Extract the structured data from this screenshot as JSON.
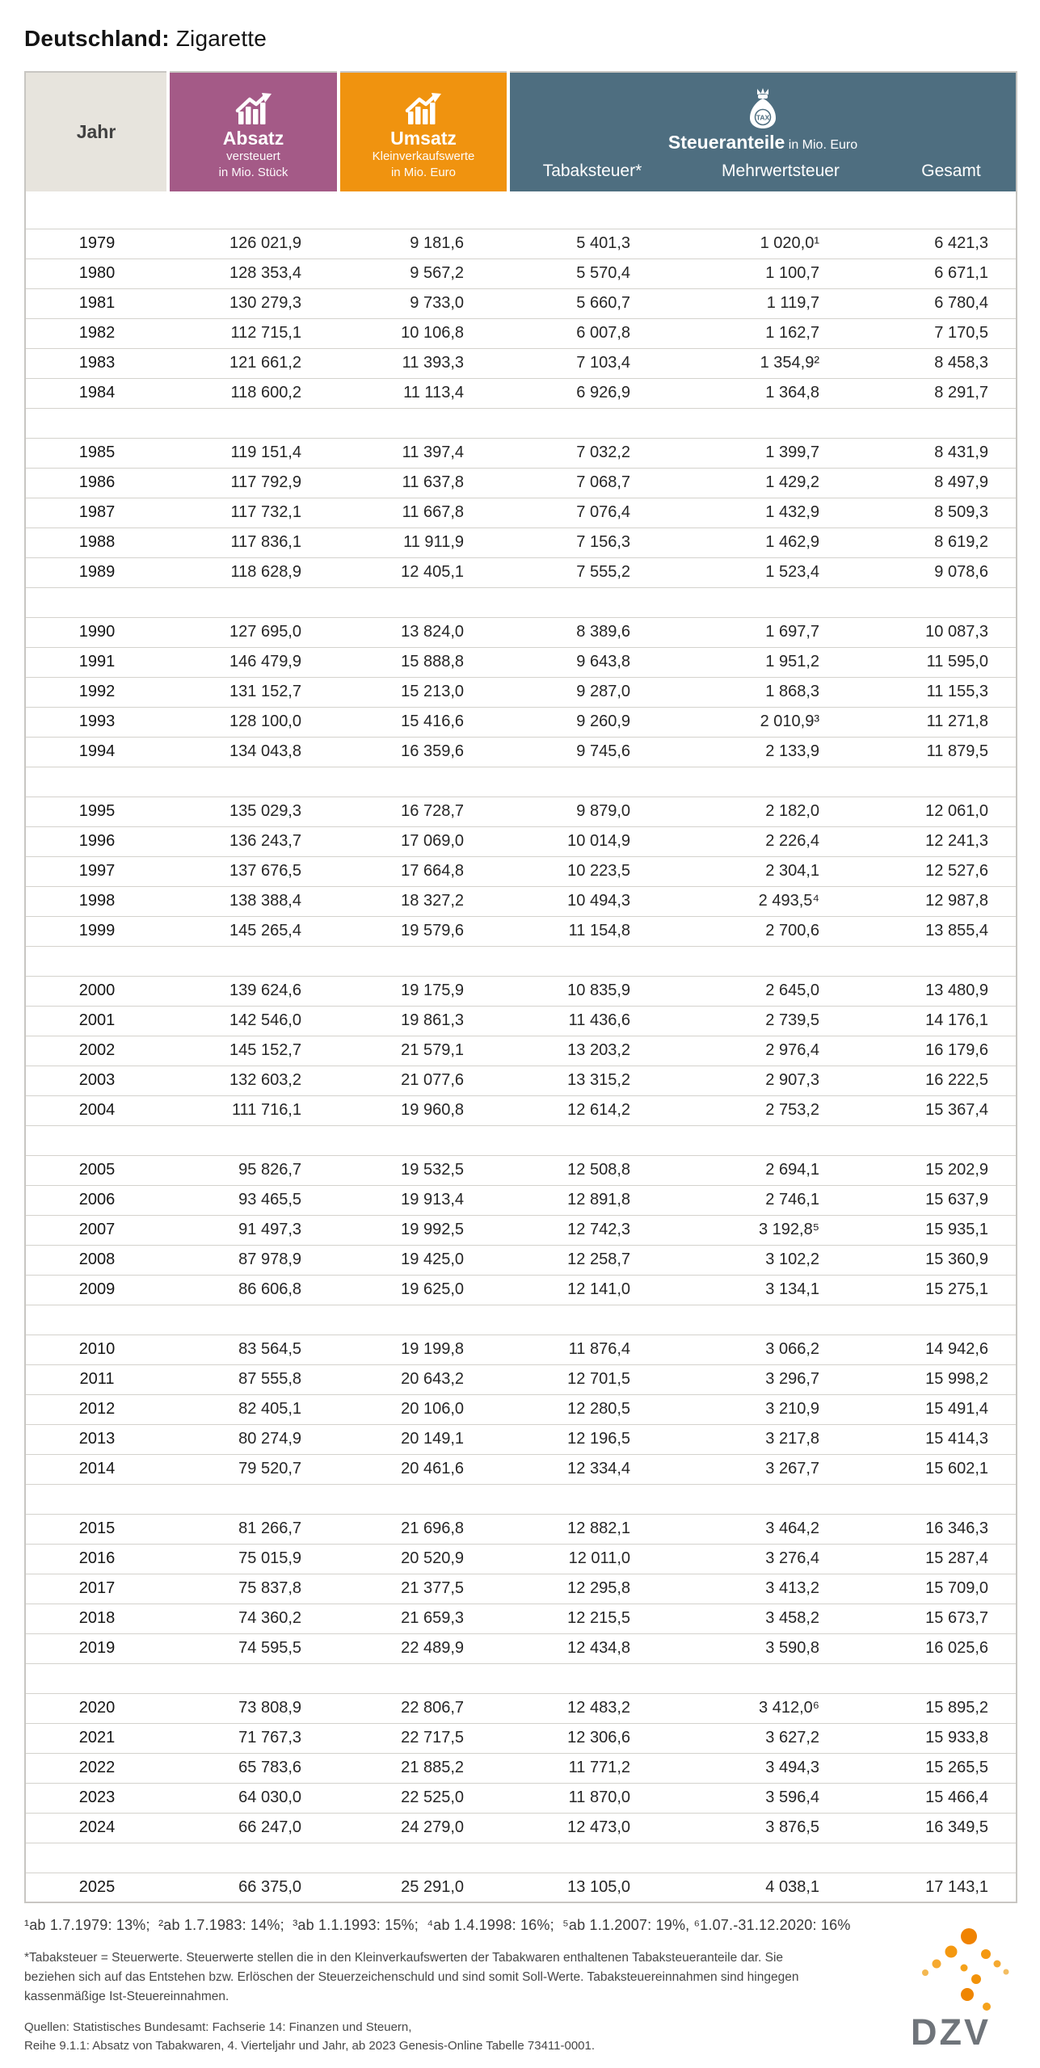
{
  "title": {
    "bold": "Deutschland:",
    "regular": "Zigarette"
  },
  "table": {
    "header": {
      "jahr": "Jahr",
      "absatz": {
        "label": "Absatz",
        "sub1": "versteuert",
        "sub2": "in Mio. Stück",
        "color": "#a45a87",
        "icon": "bar-chart-up-icon"
      },
      "umsatz": {
        "label": "Umsatz",
        "sub1": "Kleinverkaufswerte",
        "sub2": "in Mio. Euro",
        "color": "#f0930f",
        "icon": "bar-chart-up-icon"
      },
      "steueranteile": {
        "label": "Steueranteile",
        "unit": "in Mio. Euro",
        "color": "#4e6e80",
        "icon": "tax-money-bag-icon",
        "columns": [
          "Tabaksteuer*",
          "Mehrwertsteuer",
          "Gesamt"
        ]
      }
    },
    "rows": [
      {
        "year": "1979",
        "absatz": "126 021,9",
        "umsatz": "9 181,6",
        "tabaksteuer": "5 401,3",
        "mehrwertsteuer": "1 020,0¹",
        "gesamt": "6 421,3"
      },
      {
        "year": "1980",
        "absatz": "128 353,4",
        "umsatz": "9 567,2",
        "tabaksteuer": "5 570,4",
        "mehrwertsteuer": "1 100,7",
        "gesamt": "6 671,1"
      },
      {
        "year": "1981",
        "absatz": "130 279,3",
        "umsatz": "9 733,0",
        "tabaksteuer": "5 660,7",
        "mehrwertsteuer": "1 119,7",
        "gesamt": "6 780,4"
      },
      {
        "year": "1982",
        "absatz": "112 715,1",
        "umsatz": "10 106,8",
        "tabaksteuer": "6 007,8",
        "mehrwertsteuer": "1 162,7",
        "gesamt": "7 170,5"
      },
      {
        "year": "1983",
        "absatz": "121 661,2",
        "umsatz": "11 393,3",
        "tabaksteuer": "7 103,4",
        "mehrwertsteuer": "1 354,9²",
        "gesamt": "8 458,3"
      },
      {
        "year": "1984",
        "absatz": "118 600,2",
        "umsatz": "11 113,4",
        "tabaksteuer": "6 926,9",
        "mehrwertsteuer": "1 364,8",
        "gesamt": "8 291,7",
        "gap_after": true
      },
      {
        "year": "1985",
        "absatz": "119 151,4",
        "umsatz": "11 397,4",
        "tabaksteuer": "7 032,2",
        "mehrwertsteuer": "1 399,7",
        "gesamt": "8 431,9"
      },
      {
        "year": "1986",
        "absatz": "117 792,9",
        "umsatz": "11 637,8",
        "tabaksteuer": "7 068,7",
        "mehrwertsteuer": "1 429,2",
        "gesamt": "8 497,9"
      },
      {
        "year": "1987",
        "absatz": "117 732,1",
        "umsatz": "11 667,8",
        "tabaksteuer": "7 076,4",
        "mehrwertsteuer": "1 432,9",
        "gesamt": "8 509,3"
      },
      {
        "year": "1988",
        "absatz": "117 836,1",
        "umsatz": "11 911,9",
        "tabaksteuer": "7 156,3",
        "mehrwertsteuer": "1 462,9",
        "gesamt": "8 619,2"
      },
      {
        "year": "1989",
        "absatz": "118 628,9",
        "umsatz": "12 405,1",
        "tabaksteuer": "7 555,2",
        "mehrwertsteuer": "1 523,4",
        "gesamt": "9 078,6",
        "gap_after": true
      },
      {
        "year": "1990",
        "absatz": "127 695,0",
        "umsatz": "13 824,0",
        "tabaksteuer": "8 389,6",
        "mehrwertsteuer": "1 697,7",
        "gesamt": "10 087,3"
      },
      {
        "year": "1991",
        "absatz": "146 479,9",
        "umsatz": "15 888,8",
        "tabaksteuer": "9 643,8",
        "mehrwertsteuer": "1 951,2",
        "gesamt": "11 595,0"
      },
      {
        "year": "1992",
        "absatz": "131 152,7",
        "umsatz": "15 213,0",
        "tabaksteuer": "9 287,0",
        "mehrwertsteuer": "1 868,3",
        "gesamt": "11 155,3"
      },
      {
        "year": "1993",
        "absatz": "128 100,0",
        "umsatz": "15 416,6",
        "tabaksteuer": "9 260,9",
        "mehrwertsteuer": "2 010,9³",
        "gesamt": "11 271,8"
      },
      {
        "year": "1994",
        "absatz": "134 043,8",
        "umsatz": "16 359,6",
        "tabaksteuer": "9 745,6",
        "mehrwertsteuer": "2 133,9",
        "gesamt": "11 879,5",
        "gap_after": true
      },
      {
        "year": "1995",
        "absatz": "135 029,3",
        "umsatz": "16 728,7",
        "tabaksteuer": "9 879,0",
        "mehrwertsteuer": "2 182,0",
        "gesamt": "12 061,0"
      },
      {
        "year": "1996",
        "absatz": "136 243,7",
        "umsatz": "17 069,0",
        "tabaksteuer": "10 014,9",
        "mehrwertsteuer": "2 226,4",
        "gesamt": "12 241,3"
      },
      {
        "year": "1997",
        "absatz": "137 676,5",
        "umsatz": "17 664,8",
        "tabaksteuer": "10 223,5",
        "mehrwertsteuer": "2 304,1",
        "gesamt": "12 527,6"
      },
      {
        "year": "1998",
        "absatz": "138 388,4",
        "umsatz": "18 327,2",
        "tabaksteuer": "10 494,3",
        "mehrwertsteuer": "2 493,5⁴",
        "gesamt": "12 987,8"
      },
      {
        "year": "1999",
        "absatz": "145 265,4",
        "umsatz": "19 579,6",
        "tabaksteuer": "11 154,8",
        "mehrwertsteuer": "2 700,6",
        "gesamt": "13 855,4",
        "gap_after": true
      },
      {
        "year": "2000",
        "absatz": "139 624,6",
        "umsatz": "19 175,9",
        "tabaksteuer": "10 835,9",
        "mehrwertsteuer": "2 645,0",
        "gesamt": "13 480,9"
      },
      {
        "year": "2001",
        "absatz": "142 546,0",
        "umsatz": "19 861,3",
        "tabaksteuer": "11 436,6",
        "mehrwertsteuer": "2 739,5",
        "gesamt": "14 176,1"
      },
      {
        "year": "2002",
        "absatz": "145 152,7",
        "umsatz": "21 579,1",
        "tabaksteuer": "13 203,2",
        "mehrwertsteuer": "2 976,4",
        "gesamt": "16 179,6"
      },
      {
        "year": "2003",
        "absatz": "132 603,2",
        "umsatz": "21 077,6",
        "tabaksteuer": "13 315,2",
        "mehrwertsteuer": "2 907,3",
        "gesamt": "16 222,5"
      },
      {
        "year": "2004",
        "absatz": "111 716,1",
        "umsatz": "19 960,8",
        "tabaksteuer": "12 614,2",
        "mehrwertsteuer": "2 753,2",
        "gesamt": "15 367,4",
        "gap_after": true
      },
      {
        "year": "2005",
        "absatz": "95 826,7",
        "umsatz": "19 532,5",
        "tabaksteuer": "12 508,8",
        "mehrwertsteuer": "2 694,1",
        "gesamt": "15 202,9"
      },
      {
        "year": "2006",
        "absatz": "93 465,5",
        "umsatz": "19 913,4",
        "tabaksteuer": "12 891,8",
        "mehrwertsteuer": "2 746,1",
        "gesamt": "15 637,9"
      },
      {
        "year": "2007",
        "absatz": "91 497,3",
        "umsatz": "19 992,5",
        "tabaksteuer": "12 742,3",
        "mehrwertsteuer": "3 192,8⁵",
        "gesamt": "15 935,1"
      },
      {
        "year": "2008",
        "absatz": "87 978,9",
        "umsatz": "19 425,0",
        "tabaksteuer": "12 258,7",
        "mehrwertsteuer": "3 102,2",
        "gesamt": "15 360,9"
      },
      {
        "year": "2009",
        "absatz": "86 606,8",
        "umsatz": "19 625,0",
        "tabaksteuer": "12 141,0",
        "mehrwertsteuer": "3 134,1",
        "gesamt": "15 275,1",
        "gap_after": true
      },
      {
        "year": "2010",
        "absatz": "83 564,5",
        "umsatz": "19 199,8",
        "tabaksteuer": "11 876,4",
        "mehrwertsteuer": "3 066,2",
        "gesamt": "14 942,6"
      },
      {
        "year": "2011",
        "absatz": "87 555,8",
        "umsatz": "20 643,2",
        "tabaksteuer": "12 701,5",
        "mehrwertsteuer": "3 296,7",
        "gesamt": "15 998,2"
      },
      {
        "year": "2012",
        "absatz": "82 405,1",
        "umsatz": "20 106,0",
        "tabaksteuer": "12 280,5",
        "mehrwertsteuer": "3 210,9",
        "gesamt": "15 491,4"
      },
      {
        "year": "2013",
        "absatz": "80 274,9",
        "umsatz": "20 149,1",
        "tabaksteuer": "12 196,5",
        "mehrwertsteuer": "3 217,8",
        "gesamt": "15 414,3"
      },
      {
        "year": "2014",
        "absatz": "79 520,7",
        "umsatz": "20 461,6",
        "tabaksteuer": "12 334,4",
        "mehrwertsteuer": "3 267,7",
        "gesamt": "15 602,1",
        "gap_after": true
      },
      {
        "year": "2015",
        "absatz": "81 266,7",
        "umsatz": "21 696,8",
        "tabaksteuer": "12 882,1",
        "mehrwertsteuer": "3 464,2",
        "gesamt": "16 346,3"
      },
      {
        "year": "2016",
        "absatz": "75 015,9",
        "umsatz": "20 520,9",
        "tabaksteuer": "12 011,0",
        "mehrwertsteuer": "3 276,4",
        "gesamt": "15 287,4"
      },
      {
        "year": "2017",
        "absatz": "75 837,8",
        "umsatz": "21 377,5",
        "tabaksteuer": "12 295,8",
        "mehrwertsteuer": "3 413,2",
        "gesamt": "15 709,0"
      },
      {
        "year": "2018",
        "absatz": "74 360,2",
        "umsatz": "21 659,3",
        "tabaksteuer": "12 215,5",
        "mehrwertsteuer": "3 458,2",
        "gesamt": "15 673,7"
      },
      {
        "year": "2019",
        "absatz": "74 595,5",
        "umsatz": "22 489,9",
        "tabaksteuer": "12 434,8",
        "mehrwertsteuer": "3 590,8",
        "gesamt": "16 025,6",
        "gap_after": true
      },
      {
        "year": "2020",
        "absatz": "73 808,9",
        "umsatz": "22 806,7",
        "tabaksteuer": "12 483,2",
        "mehrwertsteuer": "3 412,0⁶",
        "gesamt": "15 895,2"
      },
      {
        "year": "2021",
        "absatz": "71 767,3",
        "umsatz": "22 717,5",
        "tabaksteuer": "12 306,6",
        "mehrwertsteuer": "3 627,2",
        "gesamt": "15 933,8"
      },
      {
        "year": "2022",
        "absatz": "65 783,6",
        "umsatz": "21 885,2",
        "tabaksteuer": "11 771,2",
        "mehrwertsteuer": "3 494,3",
        "gesamt": "15 265,5"
      },
      {
        "year": "2023",
        "absatz": "64 030,0",
        "umsatz": "22 525,0",
        "tabaksteuer": "11 870,0",
        "mehrwertsteuer": "3 596,4",
        "gesamt": "15 466,4"
      },
      {
        "year": "2024",
        "absatz": "66 247,0",
        "umsatz": "24 279,0",
        "tabaksteuer": "12 473,0",
        "mehrwertsteuer": "3 876,5",
        "gesamt": "16 349,5",
        "gap_after": true
      },
      {
        "year": "2025",
        "absatz": "66 375,0",
        "umsatz": "25 291,0",
        "tabaksteuer": "13 105,0",
        "mehrwertsteuer": "4 038,1",
        "gesamt": "17 143,1"
      }
    ]
  },
  "footnotes": {
    "rates": "¹ab 1.7.1979: 13%;  ²ab 1.7.1983: 14%;  ³ab 1.1.1993: 15%;  ⁴ab 1.4.1998: 16%;  ⁵ab 1.1.2007: 19%, ⁶1.07.-31.12.2020: 16%",
    "tabaksteuer_note": "*Tabaksteuer = Steuerwerte. Steuerwerte stellen die in den Kleinverkaufswerten der Tabakwaren enthaltenen Tabaksteueranteile dar. Sie beziehen sich auf das Entstehen bzw. Erlöschen der Steuerzeichenschuld und sind somit Soll-Werte. Tabaksteuereinnahmen sind hingegen kassenmäßige Ist-Steuereinnahmen."
  },
  "sources": {
    "line1": "Quellen: Statistisches Bundesamt: Fachserie 14: Finanzen und Steuern,",
    "line2": "Reihe 9.1.1: Absatz von Tabakwaren, 4. Vierteljahr und Jahr, ab 2023 Genesis-Online Tabelle 73411-0001."
  },
  "logo": {
    "text": "DZV",
    "dot_color": "#f08a00",
    "text_color": "#6f747a"
  }
}
